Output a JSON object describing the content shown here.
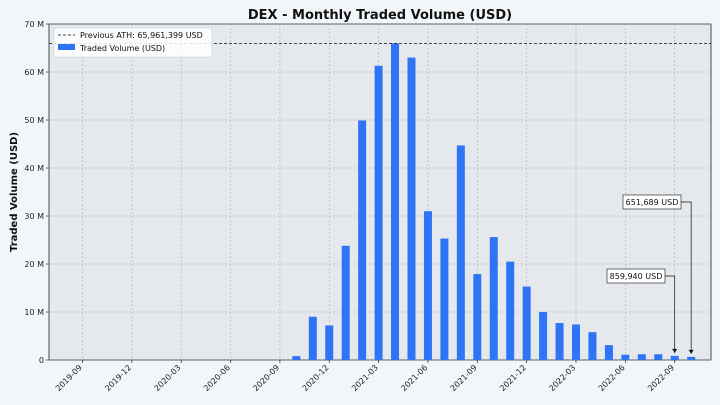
{
  "chart_data": {
    "type": "bar",
    "title": "DEX - Monthly Traded Volume (USD)",
    "xlabel": "",
    "ylabel": "Traded Volume (USD)",
    "ylim": [
      0,
      70000000
    ],
    "yticks": [
      "0",
      "10 M",
      "20 M",
      "30 M",
      "40 M",
      "50 M",
      "60 M",
      "70 M"
    ],
    "xticks": [
      "2019-09",
      "2019-12",
      "2020-03",
      "2020-06",
      "2020-09",
      "2020-12",
      "2021-03",
      "2021-06",
      "2021-09",
      "2021-12",
      "2022-03",
      "2022-06",
      "2022-09"
    ],
    "grid": true,
    "legend_position": "top-left",
    "reference_line": {
      "label": "Previous ATH: 65,961,399 USD",
      "value": 65961399,
      "style": "dashed"
    },
    "series": [
      {
        "name": "Traded Volume (USD)",
        "color": "#2f74f6",
        "categories": [
          "2019-09",
          "2019-10",
          "2019-11",
          "2019-12",
          "2020-01",
          "2020-02",
          "2020-03",
          "2020-04",
          "2020-05",
          "2020-06",
          "2020-07",
          "2020-08",
          "2020-09",
          "2020-10",
          "2020-11",
          "2020-12",
          "2021-01",
          "2021-02",
          "2021-03",
          "2021-04",
          "2021-05",
          "2021-06",
          "2021-07",
          "2021-08",
          "2021-09",
          "2021-10",
          "2021-11",
          "2021-12",
          "2022-01",
          "2022-02",
          "2022-03",
          "2022-04",
          "2022-05",
          "2022-06",
          "2022-07",
          "2022-08",
          "2022-09",
          "2022-10"
        ],
        "values": [
          0,
          0,
          0,
          0,
          0,
          0,
          0,
          0,
          0,
          0,
          0,
          0,
          0,
          800000,
          9000000,
          7200000,
          23800000,
          49900000,
          61300000,
          65961399,
          63000000,
          31000000,
          25300000,
          44700000,
          17900000,
          25600000,
          20500000,
          15300000,
          10000000,
          7700000,
          7400000,
          5800000,
          3100000,
          1100000,
          1200000,
          1200000,
          859940,
          651689
        ]
      }
    ],
    "annotations": [
      {
        "text": "859,940 USD",
        "category": "2022-09"
      },
      {
        "text": "651,689 USD",
        "category": "2022-10"
      }
    ]
  }
}
